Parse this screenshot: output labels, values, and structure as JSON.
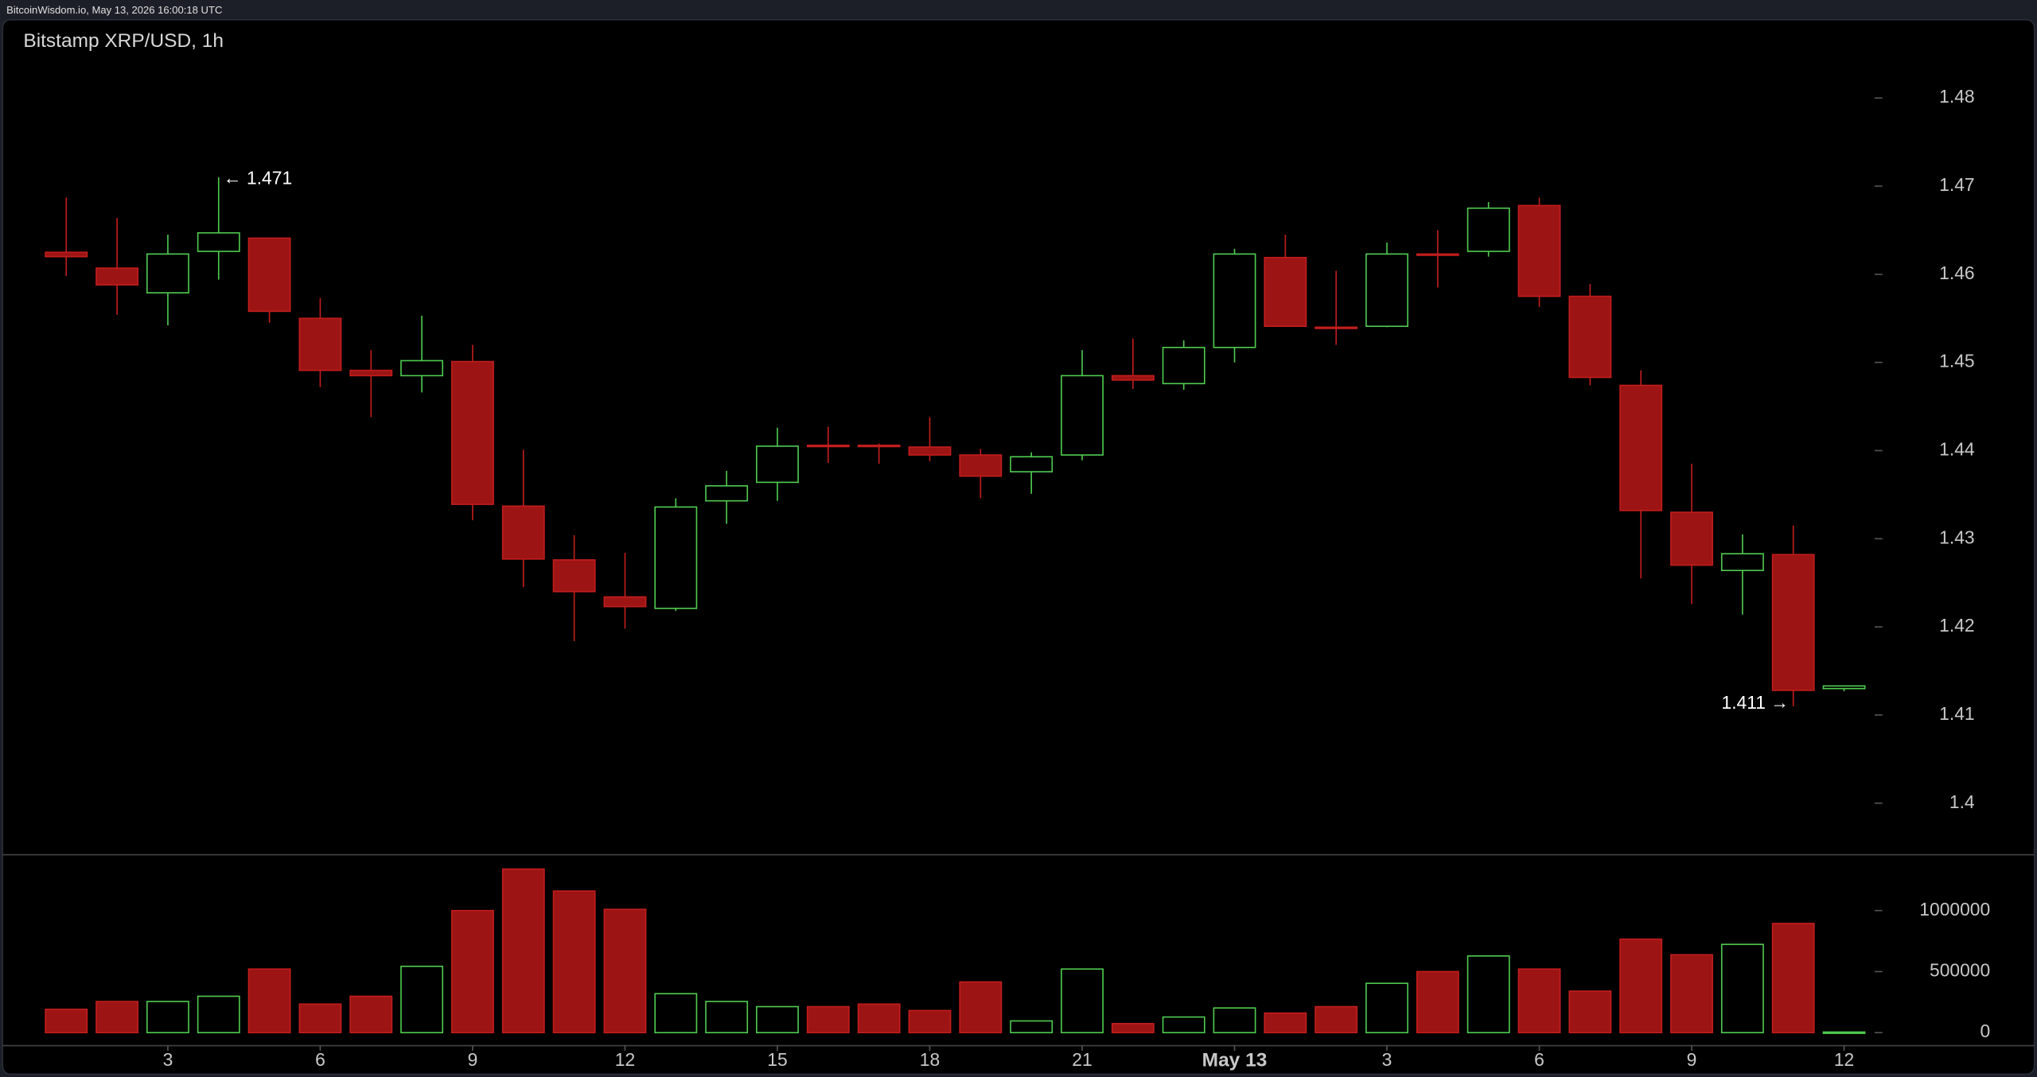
{
  "header": "BitcoinWisdom.io, May 13, 2026 16:00:18 UTC",
  "chart_data": [
    {
      "type": "candlestick",
      "title": "Bitstamp XRP/USD, 1h",
      "categories": [
        null,
        null,
        "3",
        null,
        null,
        "6",
        null,
        null,
        "9",
        null,
        null,
        "12",
        null,
        null,
        "15",
        null,
        null,
        "18",
        null,
        null,
        "21",
        null,
        null,
        "May 13",
        null,
        null,
        "3",
        null,
        null,
        "6",
        null,
        null,
        "9",
        null,
        null,
        "12"
      ],
      "open": [
        1.4625,
        1.4607,
        1.4579,
        1.4626,
        1.4641,
        1.455,
        1.4491,
        1.4485,
        1.4501,
        1.4337,
        1.4276,
        1.4234,
        1.4221,
        1.4343,
        1.4364,
        1.4406,
        1.4406,
        1.4404,
        1.4395,
        1.4376,
        1.4395,
        1.4485,
        1.4476,
        1.4517,
        1.4619,
        1.454,
        1.4541,
        1.4623,
        1.4626,
        1.4678,
        1.4575,
        1.4474,
        1.433,
        1.4264,
        1.4282,
        1.413
      ],
      "high": [
        1.4687,
        1.4664,
        1.4645,
        1.471,
        1.4641,
        1.4573,
        1.4514,
        1.4553,
        1.452,
        1.4401,
        1.4304,
        1.4284,
        1.4346,
        1.4377,
        1.4426,
        1.4427,
        1.4408,
        1.4438,
        1.4402,
        1.4398,
        1.4514,
        1.4527,
        1.4525,
        1.4629,
        1.4645,
        1.4604,
        1.4636,
        1.465,
        1.4682,
        1.4687,
        1.4589,
        1.4491,
        1.4385,
        1.4305,
        1.4315,
        1.4133
      ],
      "low": [
        1.4598,
        1.4554,
        1.4542,
        1.4594,
        1.4545,
        1.4472,
        1.4438,
        1.4466,
        1.4321,
        1.4245,
        1.4184,
        1.4198,
        1.4218,
        1.4317,
        1.4343,
        1.4386,
        1.4385,
        1.4388,
        1.4346,
        1.4351,
        1.4389,
        1.447,
        1.4469,
        1.45,
        1.4541,
        1.452,
        1.454,
        1.4585,
        1.462,
        1.4563,
        1.4474,
        1.4255,
        1.4226,
        1.4214,
        1.411,
        1.4127
      ],
      "close": [
        1.462,
        1.4588,
        1.4623,
        1.4647,
        1.4558,
        1.4491,
        1.4485,
        1.4502,
        1.4339,
        1.4277,
        1.424,
        1.4223,
        1.4336,
        1.436,
        1.4405,
        1.4405,
        1.4405,
        1.4395,
        1.4371,
        1.4393,
        1.4485,
        1.448,
        1.4517,
        1.4623,
        1.4541,
        1.4539,
        1.4623,
        1.4622,
        1.4675,
        1.4575,
        1.4483,
        1.4332,
        1.427,
        1.4283,
        1.4128,
        1.4133
      ],
      "ylim": [
        1.3943,
        1.4852
      ],
      "yticks": [
        1.4,
        1.41,
        1.42,
        1.43,
        1.44,
        1.45,
        1.46,
        1.47,
        1.48
      ],
      "up_color": "#4fc94f",
      "down_color": "#9c1414",
      "annotations": [
        "← 1.471",
        "1.411 →"
      ]
    },
    {
      "type": "bar",
      "values": [
        191000,
        255000,
        255000,
        298000,
        521000,
        234000,
        298000,
        543000,
        1000000,
        1340000,
        1160000,
        1010000,
        319000,
        255000,
        213000,
        213000,
        234000,
        181000,
        415000,
        96000,
        521000,
        74000,
        128000,
        202000,
        160000,
        213000,
        404000,
        500000,
        628000,
        521000,
        340000,
        766000,
        638000,
        723000,
        894000,
        5000
      ],
      "ylim": [
        0,
        1436000
      ],
      "yticks": [
        0,
        500000,
        1000000
      ]
    }
  ]
}
